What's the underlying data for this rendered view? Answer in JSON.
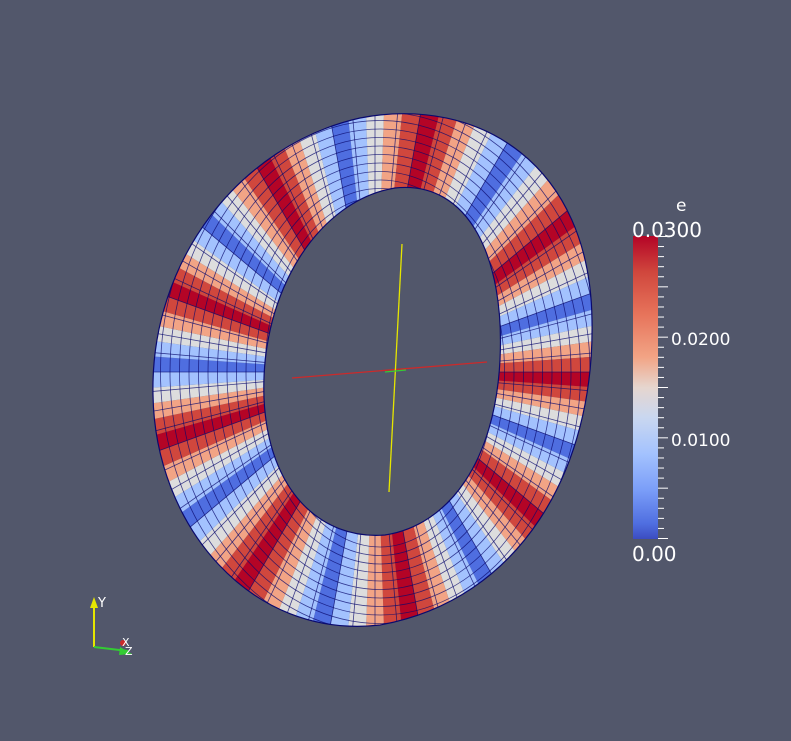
{
  "viewport": {
    "background": "#52576b",
    "object": "torus-ring",
    "colormap": [
      "#3b4cc0",
      "#dddddd",
      "#b40426"
    ],
    "mesh_color": "#000080"
  },
  "colorbar": {
    "title": "e",
    "max_label": "0.0300",
    "tick_label_1": "0.0200",
    "tick_label_2": "0.0100",
    "min_label": "0.00"
  },
  "orientation_axes": {
    "y_label": "Y",
    "x_label": "X",
    "z_label": "Z"
  }
}
